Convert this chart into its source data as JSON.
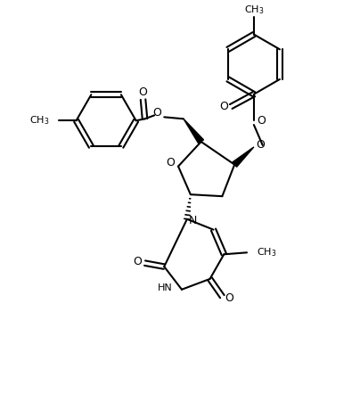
{
  "background_color": "#ffffff",
  "line_color": "#000000",
  "line_width": 1.5,
  "figsize": [
    4.04,
    4.42
  ],
  "dpi": 100,
  "xlim": [
    0,
    10
  ],
  "ylim": [
    0,
    11
  ]
}
